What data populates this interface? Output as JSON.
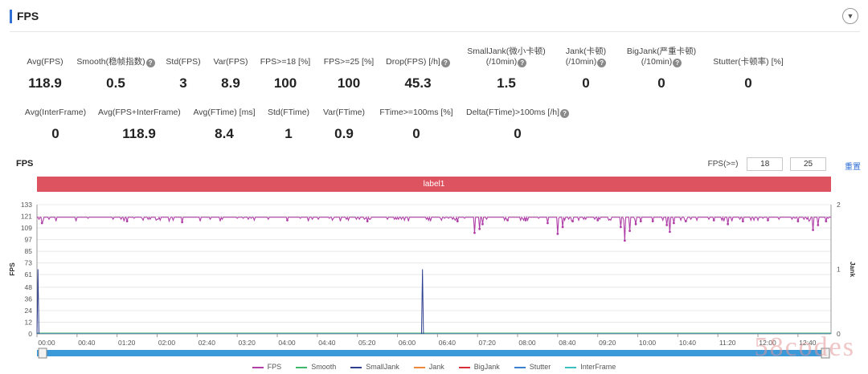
{
  "header": {
    "title": "FPS",
    "collapse_icon": "chevron-down-icon"
  },
  "metrics_row1": [
    {
      "label": "Avg(FPS)",
      "value": "118.9",
      "help": false
    },
    {
      "label": "Smooth(稳帧指数)",
      "value": "0.5",
      "help": true
    },
    {
      "label": "Std(FPS)",
      "value": "3",
      "help": false
    },
    {
      "label": "Var(FPS)",
      "value": "8.9",
      "help": false
    },
    {
      "label": "FPS>=18 [%]",
      "value": "100",
      "help": false
    },
    {
      "label": "FPS>=25 [%]",
      "value": "100",
      "help": false
    },
    {
      "label": "Drop(FPS) [/h]",
      "value": "45.3",
      "help": true
    },
    {
      "label": "SmallJank(微小卡顿)",
      "label2": "(/10min)",
      "value": "1.5",
      "help": true
    },
    {
      "label": "Jank(卡顿)",
      "label2": "(/10min)",
      "value": "0",
      "help": true
    },
    {
      "label": "BigJank(严重卡顿)",
      "label2": "(/10min)",
      "value": "0",
      "help": true
    },
    {
      "label": "Stutter(卡顿率) [%]",
      "value": "0",
      "help": false
    }
  ],
  "metrics_row2": [
    {
      "label": "Avg(InterFrame)",
      "value": "0",
      "help": false
    },
    {
      "label": "Avg(FPS+InterFrame)",
      "value": "118.9",
      "help": false
    },
    {
      "label": "Avg(FTime) [ms]",
      "value": "8.4",
      "help": false
    },
    {
      "label": "Std(FTime)",
      "value": "1",
      "help": false
    },
    {
      "label": "Var(FTime)",
      "value": "0.9",
      "help": false
    },
    {
      "label": "FTime>=100ms [%]",
      "value": "0",
      "help": false
    },
    {
      "label": "Delta(FTime)>100ms [/h]",
      "value": "0",
      "help": true
    }
  ],
  "chart_header": {
    "title": "FPS",
    "filter_label": "FPS(>=)",
    "filter_value_1": "18",
    "filter_value_2": "25",
    "reset_label": "重置"
  },
  "label_bar": {
    "text": "label1",
    "color": "#de5360"
  },
  "chart_data": {
    "type": "line",
    "title": "",
    "ylabel": "FPS",
    "y2label": "Jank",
    "ylim": [
      0,
      133
    ],
    "y2lim": [
      0,
      2
    ],
    "yticks": [
      0,
      12,
      24,
      36,
      48,
      61,
      73,
      85,
      97,
      109,
      121,
      133
    ],
    "y2ticks": [
      0,
      1,
      2
    ],
    "xticks": [
      "00:00",
      "00:40",
      "01:20",
      "02:00",
      "02:40",
      "03:20",
      "04:00",
      "04:40",
      "05:20",
      "06:00",
      "06:40",
      "07:20",
      "08:00",
      "08:40",
      "09:20",
      "10:00",
      "10:40",
      "11:20",
      "12:00",
      "12:40"
    ],
    "x_range_minutes": [
      0,
      793
    ],
    "grid": "horizontal",
    "series": [
      {
        "name": "FPS",
        "color": "#b040a8",
        "axis": "left",
        "baseline": 120,
        "dips": [
          [
            5,
            114
          ],
          [
            90,
            116
          ],
          [
            145,
            115
          ],
          [
            250,
            117
          ],
          [
            330,
            116
          ],
          [
            420,
            116
          ],
          [
            437,
            104
          ],
          [
            442,
            108
          ],
          [
            445,
            113
          ],
          [
            470,
            117
          ],
          [
            488,
            117
          ],
          [
            510,
            114
          ],
          [
            520,
            103
          ],
          [
            525,
            110
          ],
          [
            535,
            116
          ],
          [
            560,
            117
          ],
          [
            583,
            110
          ],
          [
            587,
            96
          ],
          [
            592,
            106
          ],
          [
            598,
            113
          ],
          [
            603,
            116
          ],
          [
            615,
            116
          ],
          [
            629,
            112
          ],
          [
            632,
            105
          ],
          [
            636,
            114
          ],
          [
            648,
            116
          ],
          [
            676,
            117
          ],
          [
            690,
            113
          ],
          [
            705,
            116
          ],
          [
            730,
            117
          ],
          [
            760,
            116
          ],
          [
            775,
            107
          ],
          [
            780,
            112
          ],
          [
            788,
            116
          ]
        ]
      },
      {
        "name": "Smooth",
        "color": "#3fb86b",
        "axis": "left",
        "values": "near-zero"
      },
      {
        "name": "SmallJank",
        "color": "#2e3f8f",
        "axis": "right",
        "spikes": [
          [
            1,
            1
          ],
          [
            385,
            1
          ]
        ]
      },
      {
        "name": "Jank",
        "color": "#f0883c",
        "axis": "right",
        "values": "zero"
      },
      {
        "name": "BigJank",
        "color": "#d8303a",
        "axis": "right",
        "values": "zero"
      },
      {
        "name": "Stutter",
        "color": "#3a82d0",
        "axis": "left",
        "values": "zero"
      },
      {
        "name": "InterFrame",
        "color": "#39c0c0",
        "axis": "left",
        "values": "zero"
      }
    ],
    "legend_position": "bottom"
  },
  "watermark": "58codes"
}
